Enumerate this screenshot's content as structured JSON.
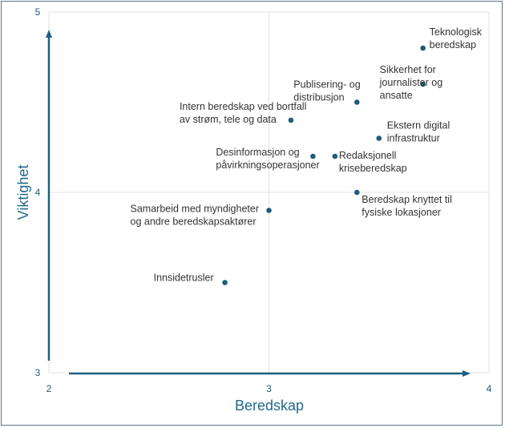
{
  "chart_data": {
    "type": "scatter",
    "xlabel": "Beredskap",
    "ylabel": "Viktighet",
    "xlim": [
      2,
      4
    ],
    "ylim": [
      3,
      5
    ],
    "xticks": [
      "2",
      "3",
      "4"
    ],
    "yticks": [
      "3",
      "4",
      "5"
    ],
    "grid": true,
    "colors": {
      "points": "#1f5c7a",
      "axis_arrows": "#1f6080",
      "axis_titles": "#1f6a8c",
      "gridlines": "#e0e0e0"
    },
    "points": [
      {
        "label": [
          "Teknologisk",
          "beredskap"
        ],
        "x": 3.7,
        "y": 4.8
      },
      {
        "label": [
          "Sikkerhet for",
          "journalister og",
          "ansatte"
        ],
        "x": 3.7,
        "y": 4.6
      },
      {
        "label": [
          "Publisering- og",
          "distribusjon"
        ],
        "x": 3.4,
        "y": 4.5
      },
      {
        "label": [
          "Intern beredskap ved bortfall",
          "av strøm, tele og data"
        ],
        "x": 3.1,
        "y": 4.4
      },
      {
        "label": [
          "Ekstern digital",
          "infrastruktur"
        ],
        "x": 3.5,
        "y": 4.3
      },
      {
        "label": [
          "Desinformasjon og",
          "påvirkningsoperasjoner"
        ],
        "x": 3.2,
        "y": 4.2
      },
      {
        "label": [
          "Redaksjonell",
          "kriseberedskap"
        ],
        "x": 3.3,
        "y": 4.2
      },
      {
        "label": [
          "Beredskap knyttet til",
          "fysiske lokasjoner"
        ],
        "x": 3.4,
        "y": 4.0
      },
      {
        "label": [
          "Samarbeid med myndigheter",
          "og andre beredskapsaktører"
        ],
        "x": 3.0,
        "y": 3.9
      },
      {
        "label": [
          "Innsidetrusler"
        ],
        "x": 2.8,
        "y": 3.5
      }
    ]
  }
}
